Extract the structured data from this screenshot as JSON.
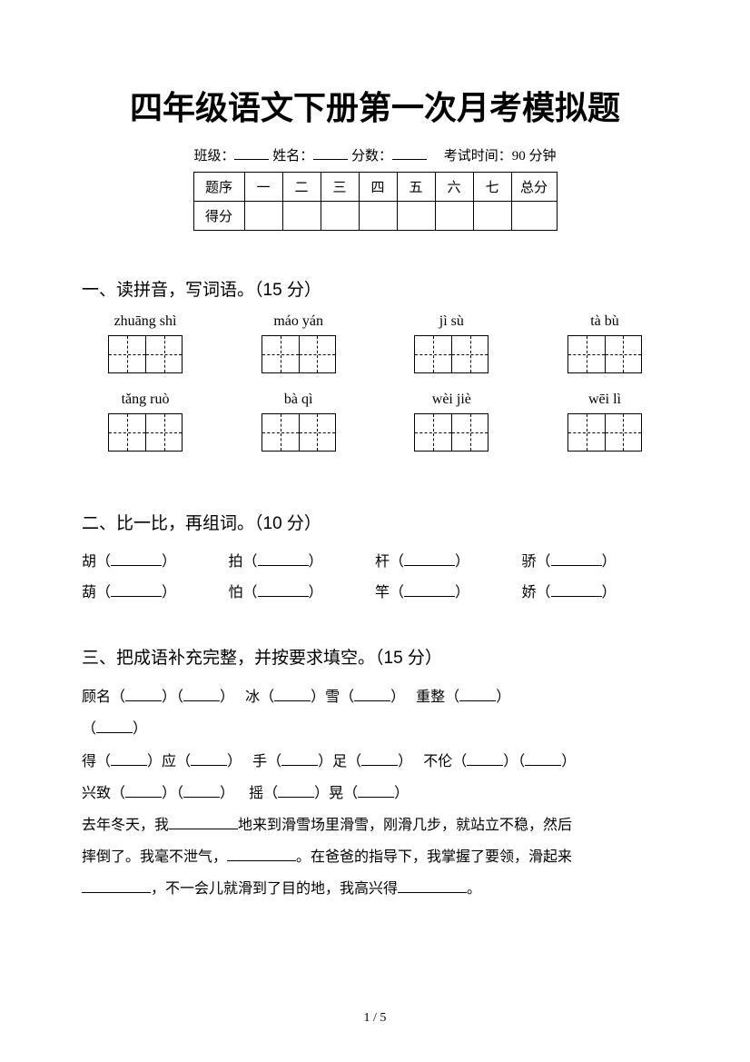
{
  "title": "四年级语文下册第一次月考模拟题",
  "info": {
    "class_label": "班级：",
    "name_label": "姓名：",
    "score_label": "分数：",
    "exam_time": "考试时间：90 分钟"
  },
  "score_table": {
    "row1": [
      "题序",
      "一",
      "二",
      "三",
      "四",
      "五",
      "六",
      "七",
      "总分"
    ],
    "row2_label": "得分"
  },
  "section1": {
    "heading": "一、读拼音，写词语。（15 分）",
    "row1": [
      "zhuāng shì",
      "máo yán",
      "jì sù",
      "tà bù"
    ],
    "row2": [
      "tǎng ruò",
      "bà qì",
      "wèi jiè",
      "wēi lì"
    ]
  },
  "section2": {
    "heading": "二、比一比，再组词。（10 分）",
    "rows": [
      [
        "胡",
        "拍",
        "杆",
        "骄"
      ],
      [
        "葫",
        "怕",
        "竿",
        "娇"
      ]
    ]
  },
  "section3": {
    "heading": "三、把成语补充完整，并按要求填空。（15 分）",
    "line1_a": "顾名",
    "line1_b": "冰",
    "line1_c": "雪",
    "line1_d": "重整",
    "line3_a": "得",
    "line3_b": "应",
    "line3_c": "手",
    "line3_d": "足",
    "line3_e": "不伦",
    "line4_a": "兴致",
    "line4_b": "摇",
    "line4_c": "晃",
    "para1": "去年冬天，我",
    "para2": "地来到滑雪场里滑雪，刚滑几步，就站立不稳，然后",
    "para3": "摔倒了。我毫不泄气，",
    "para4": "。在爸爸的指导下，我掌握了要领，滑起来",
    "para5": "，不一会儿就滑到了目的地，我高兴得",
    "para6": "。"
  },
  "page_number": "1 / 5"
}
